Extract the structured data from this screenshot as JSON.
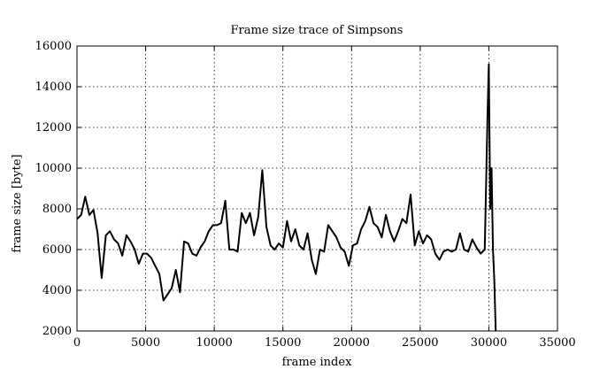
{
  "chart_data": {
    "type": "line",
    "title": "Frame size trace of Simpsons",
    "xlabel": "frame index",
    "ylabel": "frame size [byte]",
    "xlim": [
      0,
      35000
    ],
    "ylim": [
      2000,
      16000
    ],
    "xticks": [
      0,
      5000,
      10000,
      15000,
      20000,
      25000,
      30000,
      35000
    ],
    "yticks": [
      2000,
      4000,
      6000,
      8000,
      10000,
      12000,
      14000,
      16000
    ],
    "grid": true,
    "series": [
      {
        "color": "#000000",
        "x": [
          0,
          300,
          600,
          900,
          1200,
          1500,
          1800,
          2100,
          2400,
          2700,
          3000,
          3300,
          3600,
          3900,
          4200,
          4500,
          4800,
          5100,
          5400,
          5700,
          6000,
          6300,
          6600,
          6900,
          7200,
          7500,
          7800,
          8100,
          8400,
          8700,
          9000,
          9300,
          9600,
          9900,
          10200,
          10500,
          10800,
          11100,
          11400,
          11700,
          12000,
          12300,
          12600,
          12900,
          13200,
          13500,
          13800,
          14100,
          14400,
          14700,
          15000,
          15300,
          15600,
          15900,
          16200,
          16500,
          16800,
          17100,
          17400,
          17700,
          18000,
          18300,
          18600,
          18900,
          19200,
          19500,
          19800,
          20100,
          20400,
          20700,
          21000,
          21300,
          21600,
          21900,
          22200,
          22500,
          22800,
          23100,
          23400,
          23700,
          24000,
          24300,
          24600,
          24900,
          25200,
          25500,
          25800,
          26100,
          26400,
          26700,
          27000,
          27300,
          27600,
          27900,
          28200,
          28500,
          28800,
          29100,
          29400,
          29700,
          29900,
          30000,
          30100,
          30200,
          30300,
          30400,
          30500
        ],
        "y": [
          7500,
          7700,
          8600,
          7700,
          7950,
          6800,
          4600,
          6700,
          6900,
          6500,
          6300,
          5700,
          6700,
          6400,
          6000,
          5300,
          5800,
          5800,
          5600,
          5200,
          4800,
          3500,
          3800,
          4100,
          5000,
          3900,
          6400,
          6300,
          5800,
          5700,
          6100,
          6400,
          6900,
          7200,
          7200,
          7300,
          8400,
          6000,
          6000,
          5900,
          7800,
          7300,
          7800,
          6700,
          7600,
          9900,
          7100,
          6200,
          6000,
          6300,
          6100,
          7400,
          6400,
          7000,
          6200,
          6000,
          6800,
          5500,
          4800,
          6000,
          5900,
          7200,
          6900,
          6600,
          6100,
          5900,
          5200,
          6200,
          6300,
          7000,
          7400,
          8100,
          7300,
          7100,
          6600,
          7700,
          6900,
          6400,
          6900,
          7500,
          7300,
          8700,
          6200,
          6900,
          6300,
          6700,
          6500,
          5800,
          5500,
          5900,
          6000,
          5900,
          6000,
          6800,
          6000,
          5900,
          6500,
          6100,
          5800,
          6000,
          12500,
          15100,
          8000,
          10000,
          6000,
          4500,
          2000
        ]
      }
    ]
  }
}
